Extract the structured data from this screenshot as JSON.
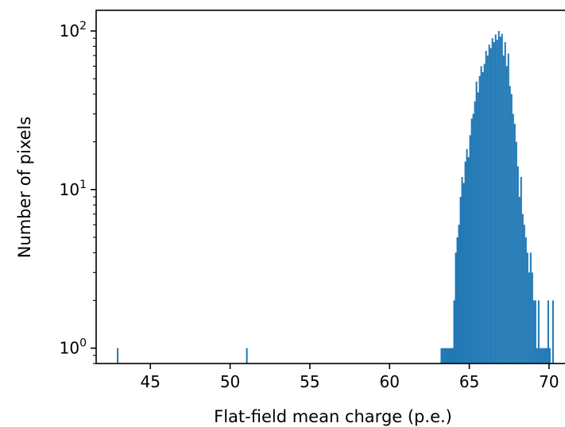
{
  "chart_data": {
    "type": "bar",
    "title": "",
    "xlabel": "Flat-field mean charge (p.e.)",
    "ylabel": "Number of pixels",
    "x_ticks": [
      45,
      50,
      55,
      60,
      65,
      70
    ],
    "y_ticks": [
      {
        "value": 1,
        "label": "10",
        "exp": "0"
      },
      {
        "value": 10,
        "label": "10",
        "exp": "1"
      },
      {
        "value": 100,
        "label": "10",
        "exp": "2"
      }
    ],
    "yscale": "log",
    "xlim": [
      41.6,
      71.3
    ],
    "ylim": [
      0.8,
      135
    ],
    "bin_width": 0.1,
    "color": "#1f77b4",
    "bins": [
      [
        42.9,
        1
      ],
      [
        51.0,
        1
      ],
      [
        63.2,
        1
      ],
      [
        63.3,
        1
      ],
      [
        63.4,
        1
      ],
      [
        63.5,
        1
      ],
      [
        63.6,
        1
      ],
      [
        63.7,
        1
      ],
      [
        63.8,
        1
      ],
      [
        63.9,
        1
      ],
      [
        64.0,
        2
      ],
      [
        64.1,
        4
      ],
      [
        64.2,
        5
      ],
      [
        64.3,
        6
      ],
      [
        64.4,
        9
      ],
      [
        64.5,
        12
      ],
      [
        64.6,
        11
      ],
      [
        64.7,
        15
      ],
      [
        64.8,
        18
      ],
      [
        64.9,
        16
      ],
      [
        65.0,
        22
      ],
      [
        65.1,
        28
      ],
      [
        65.2,
        30
      ],
      [
        65.3,
        36
      ],
      [
        65.4,
        48
      ],
      [
        65.5,
        41
      ],
      [
        65.6,
        52
      ],
      [
        65.7,
        60
      ],
      [
        65.8,
        55
      ],
      [
        65.9,
        62
      ],
      [
        66.0,
        75
      ],
      [
        66.1,
        70
      ],
      [
        66.2,
        82
      ],
      [
        66.3,
        78
      ],
      [
        66.4,
        90
      ],
      [
        66.5,
        85
      ],
      [
        66.6,
        95
      ],
      [
        66.7,
        88
      ],
      [
        66.8,
        100
      ],
      [
        66.9,
        92
      ],
      [
        67.0,
        96
      ],
      [
        67.1,
        70
      ],
      [
        67.2,
        85
      ],
      [
        67.3,
        60
      ],
      [
        67.4,
        72
      ],
      [
        67.5,
        45
      ],
      [
        67.6,
        40
      ],
      [
        67.7,
        30
      ],
      [
        67.8,
        26
      ],
      [
        67.9,
        20
      ],
      [
        68.0,
        14
      ],
      [
        68.1,
        9
      ],
      [
        68.2,
        12
      ],
      [
        68.3,
        7
      ],
      [
        68.4,
        6
      ],
      [
        68.5,
        5
      ],
      [
        68.6,
        4
      ],
      [
        68.7,
        3
      ],
      [
        68.8,
        4
      ],
      [
        68.9,
        3
      ],
      [
        69.0,
        2
      ],
      [
        69.1,
        2
      ],
      [
        69.2,
        1
      ],
      [
        69.3,
        2
      ],
      [
        69.4,
        1
      ],
      [
        69.5,
        1
      ],
      [
        69.6,
        1
      ],
      [
        69.7,
        1
      ],
      [
        69.8,
        1
      ],
      [
        69.9,
        2
      ],
      [
        70.0,
        1
      ],
      [
        70.2,
        2
      ]
    ]
  }
}
